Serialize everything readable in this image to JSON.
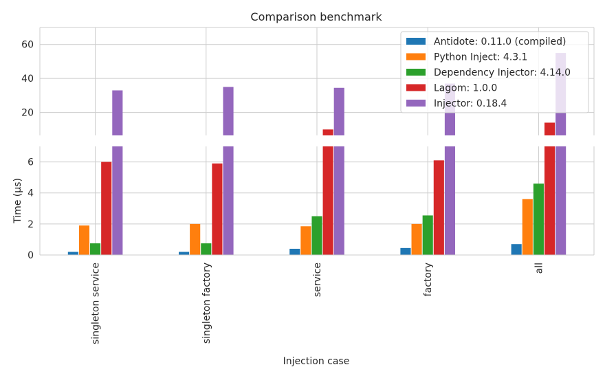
{
  "chart_data": {
    "type": "bar",
    "title": "Comparison benchmark",
    "xlabel": "Injection case",
    "ylabel": "Time (µs)",
    "categories": [
      "singleton service",
      "singleton factory",
      "service",
      "factory",
      "all"
    ],
    "series": [
      {
        "name": "Antidote: 0.11.0 (compiled)",
        "color": "#1f77b4",
        "values": [
          0.2,
          0.2,
          0.4,
          0.45,
          0.7
        ]
      },
      {
        "name": "Python Inject: 4.3.1",
        "color": "#ff7f0e",
        "values": [
          1.9,
          2.0,
          1.85,
          2.0,
          3.6
        ]
      },
      {
        "name": "Dependency Injector: 4.14.0",
        "color": "#2ca02c",
        "values": [
          0.75,
          0.75,
          2.5,
          2.55,
          4.6
        ]
      },
      {
        "name": "Lagom: 1.0.0",
        "color": "#d62728",
        "values": [
          6.0,
          5.9,
          10.0,
          6.1,
          14.0
        ]
      },
      {
        "name": "Injector:  0.18.4",
        "color": "#9467bd",
        "values": [
          33,
          35,
          34.5,
          37,
          55
        ]
      }
    ],
    "broken_axis": {
      "upper": {
        "ylim": [
          6.5,
          70
        ],
        "yticks": [
          "20",
          "40",
          "60"
        ]
      },
      "lower": {
        "ylim": [
          0,
          7
        ],
        "yticks": [
          "0",
          "2",
          "4",
          "6"
        ]
      }
    },
    "grid": true,
    "legend_position": "top-right"
  }
}
